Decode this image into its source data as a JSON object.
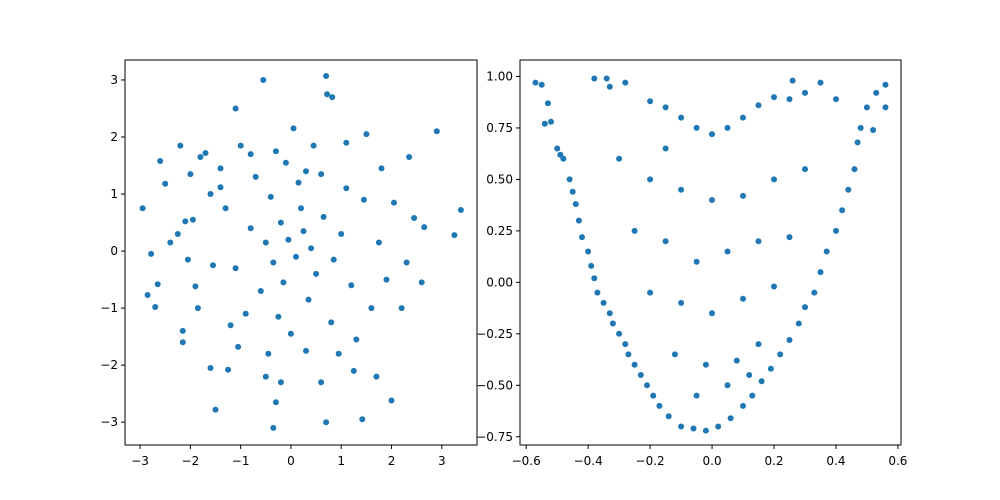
{
  "chart_data": [
    {
      "type": "scatter",
      "title": "",
      "xlabel": "",
      "ylabel": "",
      "xlim": [
        -3.3,
        3.7
      ],
      "ylim": [
        -3.4,
        3.35
      ],
      "xticks": [
        -3,
        -2,
        -1,
        0,
        1,
        2,
        3
      ],
      "yticks": [
        -3,
        -2,
        -1,
        0,
        1,
        2,
        3
      ],
      "grid": false,
      "color": "#1f77b4",
      "series": [
        {
          "points": [
            [
              -2.95,
              0.75
            ],
            [
              -2.78,
              -0.05
            ],
            [
              -2.85,
              -0.77
            ],
            [
              -2.7,
              -0.98
            ],
            [
              -2.65,
              -0.58
            ],
            [
              -2.6,
              1.58
            ],
            [
              -2.5,
              1.18
            ],
            [
              -2.4,
              0.15
            ],
            [
              -2.2,
              1.85
            ],
            [
              -2.15,
              -1.6
            ],
            [
              -2.15,
              -1.4
            ],
            [
              -2.25,
              0.3
            ],
            [
              -2.1,
              0.52
            ],
            [
              -2.0,
              1.35
            ],
            [
              -1.9,
              -0.62
            ],
            [
              -1.8,
              1.65
            ],
            [
              -1.7,
              1.72
            ],
            [
              -1.6,
              -2.05
            ],
            [
              -1.5,
              -2.78
            ],
            [
              -1.4,
              1.12
            ],
            [
              -1.25,
              -2.08
            ],
            [
              -1.1,
              2.5
            ],
            [
              -1.05,
              -1.68
            ],
            [
              -1.0,
              1.85
            ],
            [
              -0.8,
              1.7
            ],
            [
              -0.55,
              3.0
            ],
            [
              -0.5,
              -2.2
            ],
            [
              -0.35,
              -3.1
            ],
            [
              -0.3,
              -2.65
            ],
            [
              -0.2,
              -2.3
            ],
            [
              0.05,
              2.15
            ],
            [
              0.3,
              1.4
            ],
            [
              0.6,
              -2.3
            ],
            [
              0.7,
              3.07
            ],
            [
              0.72,
              2.75
            ],
            [
              0.82,
              2.7
            ],
            [
              0.7,
              -3.0
            ],
            [
              1.1,
              1.9
            ],
            [
              1.25,
              -2.1
            ],
            [
              1.42,
              -2.95
            ],
            [
              1.5,
              2.05
            ],
            [
              1.7,
              -2.2
            ],
            [
              2.0,
              -2.62
            ],
            [
              1.8,
              1.45
            ],
            [
              2.2,
              -1.0
            ],
            [
              2.35,
              1.65
            ],
            [
              2.9,
              2.1
            ],
            [
              3.25,
              0.28
            ],
            [
              3.38,
              0.72
            ],
            [
              2.6,
              -0.55
            ],
            [
              2.65,
              0.42
            ],
            [
              2.45,
              0.58
            ],
            [
              2.3,
              -0.2
            ],
            [
              -0.2,
              0.5
            ],
            [
              -0.05,
              0.2
            ],
            [
              0.1,
              -0.1
            ],
            [
              0.25,
              0.35
            ],
            [
              0.4,
              0.05
            ],
            [
              -0.35,
              -0.2
            ],
            [
              -0.5,
              0.15
            ],
            [
              0.5,
              -0.4
            ],
            [
              -0.15,
              -0.55
            ],
            [
              0.2,
              0.75
            ],
            [
              -0.6,
              -0.7
            ],
            [
              0.65,
              0.6
            ],
            [
              -0.8,
              0.4
            ],
            [
              0.85,
              -0.15
            ],
            [
              -0.4,
              0.95
            ],
            [
              0.35,
              -0.85
            ],
            [
              1.0,
              0.3
            ],
            [
              -1.1,
              -0.3
            ],
            [
              0.15,
              1.2
            ],
            [
              -0.25,
              -1.15
            ],
            [
              1.2,
              -0.6
            ],
            [
              -1.3,
              0.75
            ],
            [
              0.6,
              1.35
            ],
            [
              -0.9,
              -1.1
            ],
            [
              1.45,
              0.9
            ],
            [
              -1.55,
              -0.25
            ],
            [
              0.0,
              -1.45
            ],
            [
              -0.1,
              1.55
            ],
            [
              1.6,
              -1.0
            ],
            [
              -1.6,
              1.0
            ],
            [
              1.1,
              1.1
            ],
            [
              -1.2,
              -1.3
            ],
            [
              0.8,
              -1.25
            ],
            [
              -0.7,
              1.3
            ],
            [
              1.75,
              0.15
            ],
            [
              -1.85,
              -1.0
            ],
            [
              0.45,
              1.85
            ],
            [
              -0.45,
              -1.8
            ],
            [
              1.9,
              -0.5
            ],
            [
              -1.95,
              0.55
            ],
            [
              1.3,
              -1.55
            ],
            [
              -1.4,
              1.45
            ],
            [
              0.3,
              -1.75
            ],
            [
              -0.3,
              1.75
            ],
            [
              2.05,
              0.85
            ],
            [
              -2.05,
              -0.15
            ],
            [
              0.95,
              -1.8
            ]
          ]
        }
      ]
    },
    {
      "type": "scatter",
      "title": "",
      "xlabel": "",
      "ylabel": "",
      "xlim": [
        -0.62,
        0.61
      ],
      "ylim": [
        -0.79,
        1.08
      ],
      "xticks": [
        -0.6,
        -0.4,
        -0.2,
        0.0,
        0.2,
        0.4,
        0.6
      ],
      "yticks": [
        -0.75,
        -0.5,
        -0.25,
        0.0,
        0.25,
        0.5,
        0.75,
        1.0
      ],
      "grid": false,
      "color": "#1f77b4",
      "series": [
        {
          "points": [
            [
              -0.57,
              0.97
            ],
            [
              -0.55,
              0.96
            ],
            [
              -0.53,
              0.87
            ],
            [
              -0.52,
              0.78
            ],
            [
              -0.54,
              0.77
            ],
            [
              -0.5,
              0.65
            ],
            [
              -0.49,
              0.62
            ],
            [
              -0.48,
              0.6
            ],
            [
              -0.46,
              0.5
            ],
            [
              -0.45,
              0.44
            ],
            [
              -0.44,
              0.38
            ],
            [
              -0.43,
              0.3
            ],
            [
              -0.42,
              0.22
            ],
            [
              -0.4,
              0.15
            ],
            [
              -0.39,
              0.08
            ],
            [
              -0.38,
              0.02
            ],
            [
              -0.37,
              -0.05
            ],
            [
              -0.35,
              -0.1
            ],
            [
              -0.33,
              -0.15
            ],
            [
              -0.32,
              -0.2
            ],
            [
              -0.3,
              -0.25
            ],
            [
              -0.28,
              -0.3
            ],
            [
              -0.27,
              -0.35
            ],
            [
              -0.25,
              -0.4
            ],
            [
              -0.23,
              -0.45
            ],
            [
              -0.21,
              -0.5
            ],
            [
              -0.19,
              -0.55
            ],
            [
              -0.17,
              -0.6
            ],
            [
              -0.14,
              -0.65
            ],
            [
              -0.1,
              -0.7
            ],
            [
              -0.06,
              -0.71
            ],
            [
              -0.02,
              -0.72
            ],
            [
              0.02,
              -0.7
            ],
            [
              0.06,
              -0.66
            ],
            [
              0.1,
              -0.6
            ],
            [
              0.13,
              -0.55
            ],
            [
              0.16,
              -0.48
            ],
            [
              0.19,
              -0.42
            ],
            [
              0.22,
              -0.35
            ],
            [
              0.25,
              -0.28
            ],
            [
              0.28,
              -0.2
            ],
            [
              0.3,
              -0.12
            ],
            [
              0.33,
              -0.05
            ],
            [
              0.35,
              0.05
            ],
            [
              0.37,
              0.15
            ],
            [
              0.4,
              0.25
            ],
            [
              0.42,
              0.35
            ],
            [
              0.44,
              0.45
            ],
            [
              0.46,
              0.55
            ],
            [
              0.47,
              0.68
            ],
            [
              0.48,
              0.75
            ],
            [
              0.5,
              0.85
            ],
            [
              0.53,
              0.92
            ],
            [
              0.56,
              0.96
            ],
            [
              0.56,
              0.85
            ],
            [
              0.52,
              0.74
            ],
            [
              -0.38,
              0.99
            ],
            [
              -0.34,
              0.99
            ],
            [
              -0.28,
              0.97
            ],
            [
              -0.33,
              0.95
            ],
            [
              -0.2,
              0.88
            ],
            [
              -0.15,
              0.85
            ],
            [
              -0.1,
              0.8
            ],
            [
              -0.05,
              0.75
            ],
            [
              0.0,
              0.72
            ],
            [
              0.05,
              0.75
            ],
            [
              0.1,
              0.8
            ],
            [
              0.15,
              0.86
            ],
            [
              0.2,
              0.9
            ],
            [
              0.25,
              0.89
            ],
            [
              0.3,
              0.92
            ],
            [
              0.35,
              0.97
            ],
            [
              0.26,
              0.98
            ],
            [
              0.4,
              0.89
            ],
            [
              -0.3,
              0.6
            ],
            [
              -0.2,
              0.5
            ],
            [
              -0.1,
              0.45
            ],
            [
              0.0,
              0.4
            ],
            [
              0.1,
              0.42
            ],
            [
              0.2,
              0.5
            ],
            [
              0.3,
              0.55
            ],
            [
              -0.25,
              0.25
            ],
            [
              -0.15,
              0.2
            ],
            [
              -0.05,
              0.1
            ],
            [
              0.05,
              0.15
            ],
            [
              0.15,
              0.2
            ],
            [
              0.25,
              0.22
            ],
            [
              -0.2,
              -0.05
            ],
            [
              -0.1,
              -0.1
            ],
            [
              0.0,
              -0.15
            ],
            [
              0.1,
              -0.08
            ],
            [
              0.2,
              -0.02
            ],
            [
              -0.12,
              -0.35
            ],
            [
              -0.02,
              -0.4
            ],
            [
              0.08,
              -0.38
            ],
            [
              0.15,
              -0.3
            ],
            [
              -0.05,
              -0.55
            ],
            [
              0.05,
              -0.5
            ],
            [
              0.12,
              -0.45
            ],
            [
              -0.15,
              0.65
            ]
          ]
        }
      ]
    }
  ]
}
